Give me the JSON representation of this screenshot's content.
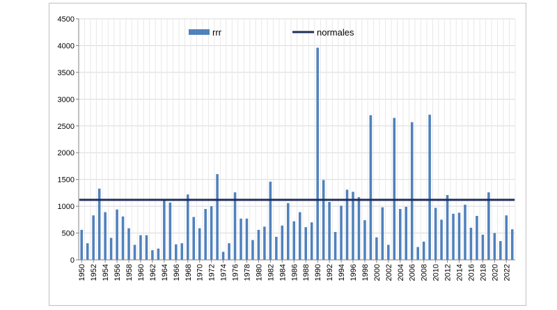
{
  "chart_data": {
    "type": "bar",
    "title": "",
    "xlabel": "",
    "ylabel": "",
    "ylim": [
      0,
      4500
    ],
    "yticks": [
      0,
      500,
      1000,
      1500,
      2000,
      2500,
      3000,
      3500,
      4000,
      4500
    ],
    "grid": true,
    "legend_position": "top",
    "bar_color": "#4f81bd",
    "line_color": "#1f2e5a",
    "categories": [
      1950,
      1951,
      1952,
      1953,
      1954,
      1955,
      1956,
      1957,
      1958,
      1959,
      1960,
      1961,
      1962,
      1963,
      1964,
      1965,
      1966,
      1967,
      1968,
      1969,
      1970,
      1971,
      1972,
      1973,
      1974,
      1975,
      1976,
      1977,
      1978,
      1979,
      1980,
      1981,
      1982,
      1983,
      1984,
      1985,
      1986,
      1987,
      1988,
      1989,
      1990,
      1991,
      1992,
      1993,
      1994,
      1995,
      1996,
      1997,
      1998,
      1999,
      2000,
      2001,
      2002,
      2003,
      2004,
      2005,
      2006,
      2007,
      2008,
      2009,
      2010,
      2011,
      2012,
      2013,
      2014,
      2015,
      2016,
      2017,
      2018,
      2019,
      2020,
      2021,
      2022,
      2023
    ],
    "x_tick_labels": [
      "1950",
      "1952",
      "1954",
      "1956",
      "1958",
      "1960",
      "1962",
      "1964",
      "1966",
      "1968",
      "1970",
      "1972",
      "1974",
      "1976",
      "1978",
      "1980",
      "1982",
      "1984",
      "1986",
      "1988",
      "1990",
      "1992",
      "1994",
      "1996",
      "1998",
      "2000",
      "2002",
      "2004",
      "2006",
      "2008",
      "2010",
      "2012",
      "2014",
      "2016",
      "2018",
      "2020",
      "2022"
    ],
    "series": [
      {
        "name": "rrr",
        "type": "bar",
        "values": [
          560,
          310,
          830,
          1330,
          890,
          410,
          940,
          810,
          590,
          280,
          460,
          460,
          180,
          210,
          1110,
          1070,
          290,
          310,
          1220,
          800,
          590,
          950,
          1000,
          1600,
          150,
          310,
          1260,
          770,
          770,
          370,
          560,
          620,
          1460,
          430,
          640,
          1060,
          720,
          890,
          610,
          700,
          3960,
          1490,
          1080,
          520,
          1010,
          1310,
          1270,
          1170,
          740,
          2700,
          420,
          980,
          280,
          2650,
          950,
          990,
          2570,
          240,
          340,
          2710,
          970,
          750,
          1210,
          860,
          880,
          1030,
          600,
          820,
          470,
          1260,
          500,
          350,
          830,
          570
        ]
      },
      {
        "name": "normales",
        "type": "line",
        "value": 1120
      }
    ]
  }
}
